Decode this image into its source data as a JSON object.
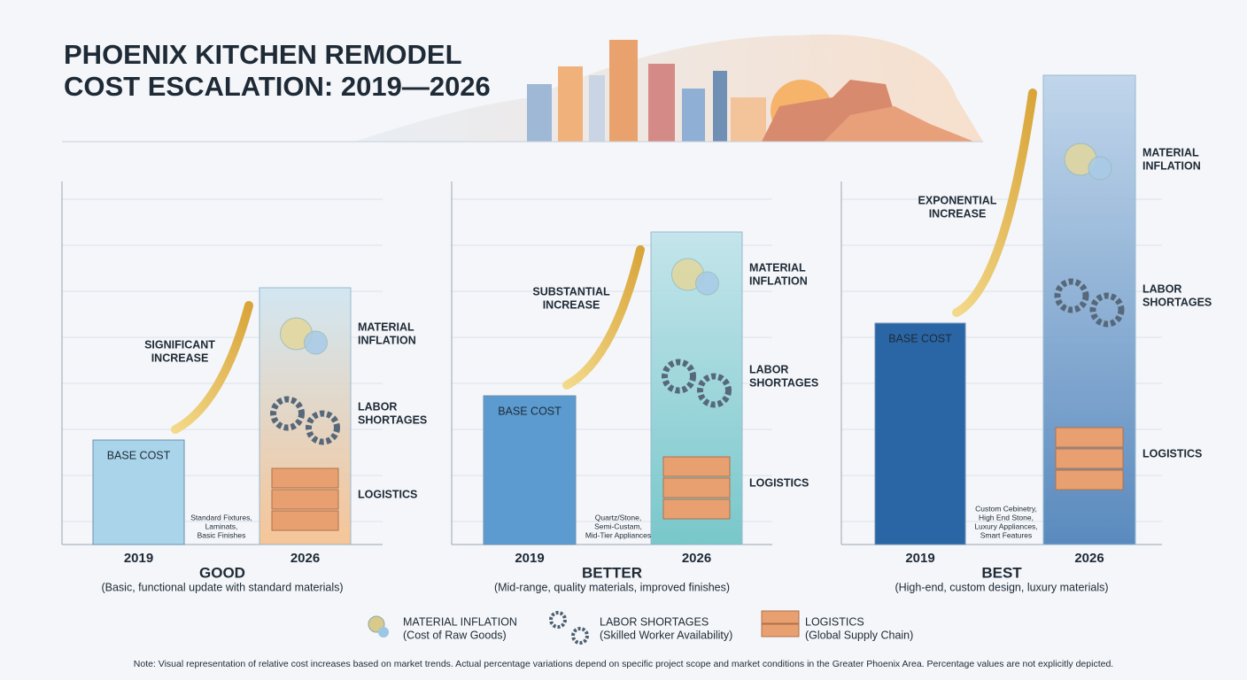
{
  "header": {
    "title": [
      "PHOENIX KITCHEN REMODEL",
      "COST ESCALATION: 2019—2026"
    ]
  },
  "panels": [
    {
      "tier": "GOOD",
      "description": "(Basic, functional update with standard materials)",
      "increase": [
        "SIGNIFICANT",
        "INCREASE"
      ],
      "base": "BASE COST",
      "year_start": "2019",
      "year_end": "2026",
      "finishes": [
        "Standard Fixtures,",
        "Laminats,",
        "Basic Finishes"
      ],
      "factors": [
        [
          "MATERIAL",
          "INFLATION"
        ],
        [
          "LABOR",
          "SHORTAGES"
        ],
        [
          "LOGISTICS"
        ]
      ]
    },
    {
      "tier": "BETTER",
      "description": "(Mid-range, quality materials, improved finishes)",
      "increase": [
        "SUBSTANTIAL",
        "INCREASE"
      ],
      "base": "BASE COST",
      "year_start": "2019",
      "year_end": "2026",
      "finishes": [
        "Quartz/Stone,",
        "Semi-Custam,",
        "Mid-Tier Appliances"
      ],
      "factors": [
        [
          "MATERIAL",
          "INFLATION"
        ],
        [
          "LABOR",
          "SHORTAGES"
        ],
        [
          "LOGISTICS"
        ]
      ]
    },
    {
      "tier": "BEST",
      "description": "(High-end, custom design, luxury materials)",
      "increase": [
        "EXPONENTIAL",
        "INCREASE"
      ],
      "base": "BASE COST",
      "year_start": "2019",
      "year_end": "2026",
      "finishes": [
        "Custom Cebinetry,",
        "High End Stone,",
        "Luxury Appliances,",
        "Smart Features"
      ],
      "factors": [
        [
          "MATERIAL",
          "INFLATION"
        ],
        [
          "LABOR",
          "SHORTAGES"
        ],
        [
          "LOGISTICS"
        ]
      ]
    }
  ],
  "legend": [
    {
      "title": "MATERIAL INFLATION",
      "subtitle": "(Cost of Raw Goods)"
    },
    {
      "title": "LABOR SHORTAGES",
      "subtitle": "(Skilled Worker Availability)"
    },
    {
      "title": "LOGISTICS",
      "subtitle": "(Global Supply Chain)"
    }
  ],
  "note": "Note: Visual representation of relative cost increases based on market trends. Actual percentage variations depend on specific project scope and market conditions in the Greater Phoenix Area. Percentage values are not explicitly depicted."
}
